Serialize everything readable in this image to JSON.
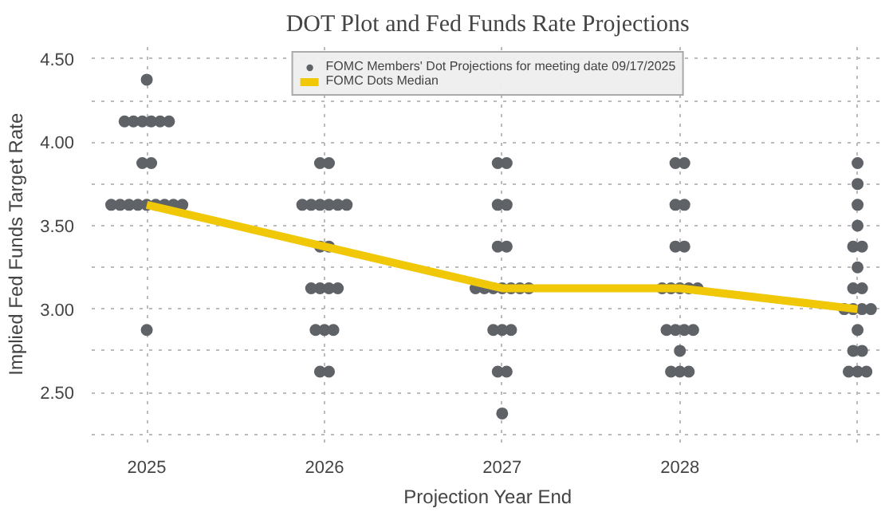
{
  "chart_data": {
    "type": "scatter",
    "title": "DOT Plot and Fed Funds Rate Projections",
    "xlabel": "Projection Year End",
    "ylabel": "Implied Fed Funds Target Rate",
    "xlim": [
      2024.69,
      2029.15
    ],
    "xticks": [
      2025,
      2026,
      2027,
      2028,
      {
        "value": 2029,
        "label": null
      }
    ],
    "ylim": [
      2.2,
      4.58
    ],
    "yticks": [
      {
        "value": 2.25,
        "label": null
      },
      {
        "value": 2.5,
        "label": "2.50"
      },
      {
        "value": 2.75,
        "label": null
      },
      {
        "value": 3.0,
        "label": "3.00"
      },
      {
        "value": 3.25,
        "label": null
      },
      {
        "value": 3.5,
        "label": "3.50"
      },
      {
        "value": 3.75,
        "label": null
      },
      {
        "value": 4.0,
        "label": "4.00"
      },
      {
        "value": 4.25,
        "label": null
      },
      {
        "value": 4.5,
        "label": "4.50"
      }
    ],
    "grid": true,
    "legend": "top",
    "series": [
      {
        "name": "FOMC Members' Dot Projections for meeting date 09/17/2025",
        "marker": "circle",
        "color": "#5f6368",
        "x": [
          2025,
          2024.875,
          2024.925,
          2024.975,
          2025.025,
          2025.075,
          2025.125,
          2024.975,
          2025.025,
          2024.8,
          2024.85,
          2024.9,
          2024.95,
          2025,
          2025.05,
          2025.1,
          2025.15,
          2025.2,
          2025,
          2025.975,
          2026.025,
          2025.875,
          2025.925,
          2025.975,
          2026.025,
          2026.075,
          2026.125,
          2025.975,
          2026.025,
          2025.925,
          2025.975,
          2026.025,
          2026.075,
          2025.95,
          2026,
          2026.05,
          2025.975,
          2026.025,
          2026.975,
          2027.025,
          2026.975,
          2027.025,
          2026.975,
          2027.025,
          2026.85,
          2026.9,
          2026.95,
          2027,
          2027.05,
          2027.1,
          2027.15,
          2026.95,
          2027,
          2027.05,
          2026.975,
          2027.025,
          2027,
          2027.975,
          2028.025,
          2027.975,
          2028.025,
          2027.975,
          2028.025,
          2027.9,
          2027.95,
          2028,
          2028.05,
          2028.1,
          2027.925,
          2027.975,
          2028.025,
          2028.075,
          2028,
          2027.95,
          2028,
          2028.05,
          2029,
          2029,
          2029,
          2029,
          2028.975,
          2029.025,
          2029,
          2028.975,
          2029.025,
          2028.925,
          2028.975,
          2029.025,
          2029.075,
          2029,
          2028.975,
          2029.025,
          2028.95,
          2029,
          2029.05
        ],
        "values": [
          4.375,
          4.125,
          4.125,
          4.125,
          4.125,
          4.125,
          4.125,
          3.875,
          3.875,
          3.625,
          3.625,
          3.625,
          3.625,
          3.625,
          3.625,
          3.625,
          3.625,
          3.625,
          2.875,
          3.875,
          3.875,
          3.625,
          3.625,
          3.625,
          3.625,
          3.625,
          3.625,
          3.375,
          3.375,
          3.125,
          3.125,
          3.125,
          3.125,
          2.875,
          2.875,
          2.875,
          2.625,
          2.625,
          3.875,
          3.875,
          3.625,
          3.625,
          3.375,
          3.375,
          3.125,
          3.125,
          3.125,
          3.125,
          3.125,
          3.125,
          3.125,
          2.875,
          2.875,
          2.875,
          2.625,
          2.625,
          2.375,
          3.875,
          3.875,
          3.625,
          3.625,
          3.375,
          3.375,
          3.125,
          3.125,
          3.125,
          3.125,
          3.125,
          2.875,
          2.875,
          2.875,
          2.875,
          2.75,
          2.625,
          2.625,
          2.625,
          3.875,
          3.75,
          3.625,
          3.5,
          3.375,
          3.375,
          3.25,
          3.125,
          3.125,
          3.0,
          3.0,
          3.0,
          3.0,
          2.875,
          2.75,
          2.75,
          2.625,
          2.625,
          2.625
        ]
      },
      {
        "name": "FOMC Dots Median",
        "type": "line",
        "marker": "none",
        "color": "#f0c808",
        "x": [
          2025,
          2026,
          2027,
          2028,
          2029
        ],
        "values": [
          3.625,
          3.375,
          3.125,
          3.125,
          3.0
        ]
      }
    ]
  }
}
